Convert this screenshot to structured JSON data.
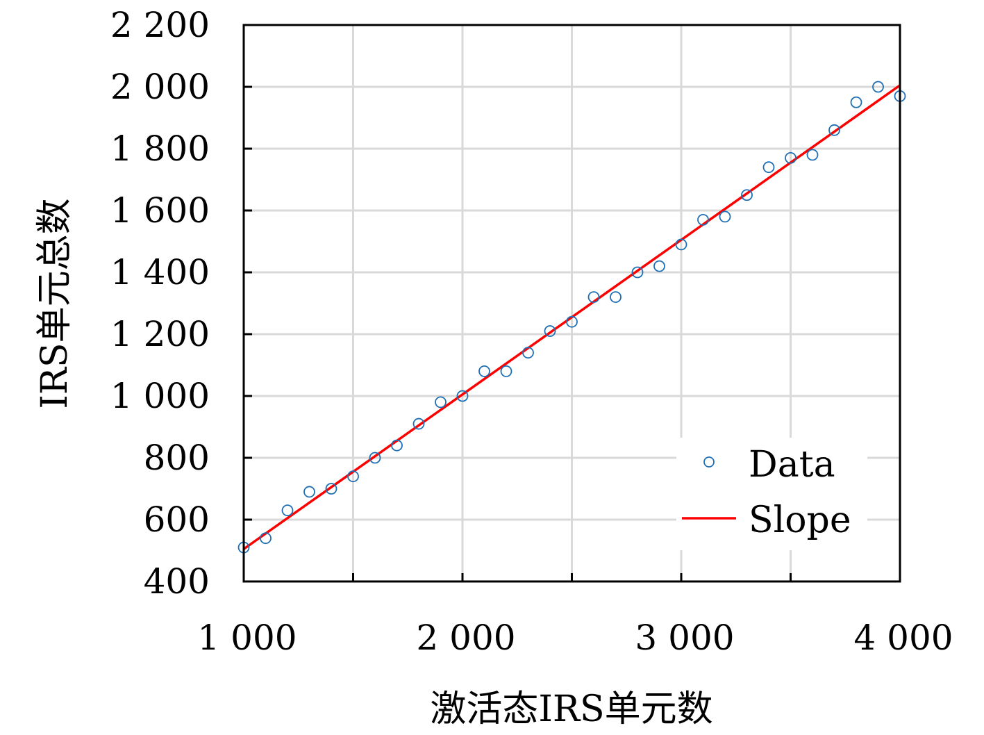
{
  "chart_data": {
    "type": "scatter",
    "title": "",
    "xlabel": "激活态IRS单元数",
    "ylabel": "IRS单元总数",
    "xlim": [
      1000,
      4000
    ],
    "ylim": [
      400,
      2200
    ],
    "xticks": [
      1000,
      2000,
      3000,
      4000
    ],
    "xtick_labels": [
      "1 000",
      "2 000",
      "3 000",
      "4 000"
    ],
    "yticks": [
      400,
      600,
      800,
      1000,
      1200,
      1400,
      1600,
      1800,
      2000,
      2200
    ],
    "ytick_labels": [
      "400",
      "600",
      "800",
      "1 000",
      "1 200",
      "1 400",
      "1 600",
      "1 800",
      "2 000",
      "2 200"
    ],
    "grid": true,
    "legend_position": "bottom-right",
    "series": [
      {
        "name": "Data",
        "kind": "scatter",
        "marker": "open-circle",
        "color": "#1f6fb4",
        "x": [
          1000,
          1100,
          1200,
          1300,
          1400,
          1500,
          1600,
          1700,
          1800,
          1900,
          2000,
          2100,
          2200,
          2300,
          2400,
          2500,
          2600,
          2700,
          2800,
          2900,
          3000,
          3100,
          3200,
          3300,
          3400,
          3500,
          3600,
          3700,
          3800,
          3900,
          4000
        ],
        "y": [
          510,
          540,
          630,
          690,
          700,
          740,
          800,
          840,
          910,
          980,
          1000,
          1080,
          1080,
          1140,
          1210,
          1240,
          1320,
          1320,
          1400,
          1420,
          1490,
          1570,
          1580,
          1650,
          1740,
          1770,
          1780,
          1860,
          1950,
          2000,
          1970
        ]
      },
      {
        "name": "Slope",
        "kind": "line",
        "color": "#ff0000",
        "x": [
          1000,
          4000
        ],
        "y": [
          505,
          2005
        ]
      }
    ]
  }
}
